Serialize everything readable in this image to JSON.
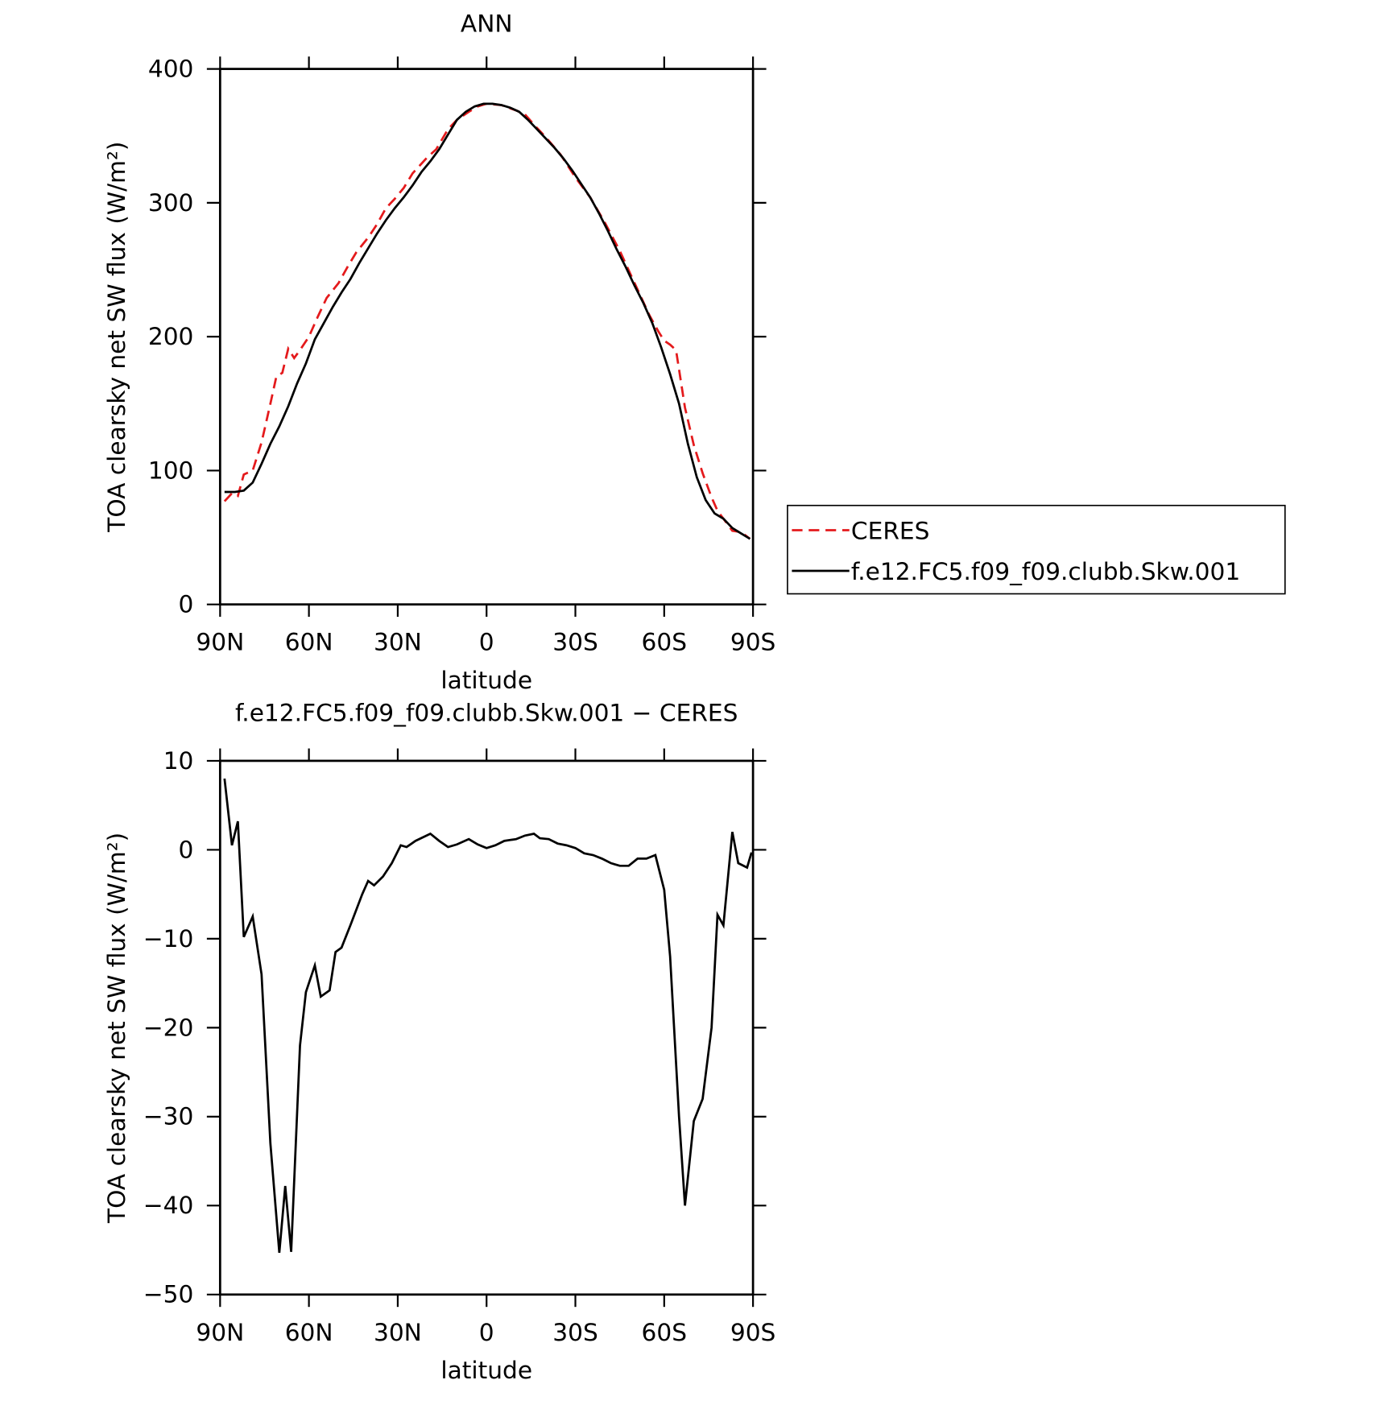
{
  "chart_data": [
    {
      "type": "line",
      "title": "ANN",
      "x_label": "latitude",
      "y_label": "TOA clearsky net SW flux (W/m²)",
      "xlim": [
        90,
        -90
      ],
      "xticks": [
        {
          "value": 90,
          "label": "90N"
        },
        {
          "value": 60,
          "label": "60N"
        },
        {
          "value": 30,
          "label": "30N"
        },
        0,
        {
          "value": -30,
          "label": "30S"
        },
        {
          "value": -60,
          "label": "60S"
        },
        {
          "value": -90,
          "label": "90S"
        }
      ],
      "ylim": [
        0,
        400
      ],
      "yticks": [
        0,
        100,
        200,
        300,
        400
      ],
      "legend": "right",
      "series": [
        {
          "name": "CERES",
          "color": "#e41a1c",
          "dashed": true,
          "x": [
            88.5,
            86,
            84,
            82,
            79,
            76,
            73,
            71,
            69,
            67,
            65,
            63,
            60,
            57,
            54,
            50,
            47,
            44,
            40,
            37,
            34,
            31,
            28,
            25,
            20,
            17,
            13,
            10,
            6,
            3,
            0,
            -5,
            -10,
            -13,
            -17,
            -20,
            -25,
            -30,
            -35,
            -40,
            -45,
            -50,
            -55,
            -58,
            -60,
            -62,
            -64,
            -67,
            -70,
            -73,
            -76,
            -78,
            -80,
            -83,
            -86,
            -89
          ],
          "values": [
            77,
            83,
            81,
            97,
            100,
            121,
            150,
            170,
            173,
            191,
            184,
            190,
            200,
            215,
            229,
            240,
            252,
            263,
            274,
            284,
            296,
            303,
            311,
            322,
            334,
            340,
            355,
            362,
            368,
            372,
            374,
            373,
            369,
            366,
            356,
            349,
            336,
            319,
            304,
            285,
            264,
            240,
            216,
            204,
            197,
            194,
            190,
            147,
            119,
            98,
            80,
            70,
            64,
            55,
            54,
            49
          ]
        },
        {
          "name": "f.e12.FC5.f09_f09.clubb.Skw.001",
          "color": "#000000",
          "dashed": false,
          "x": [
            88.5,
            85,
            82,
            79,
            76,
            73,
            70,
            67,
            64,
            61,
            58,
            55,
            52,
            49,
            46,
            43,
            40,
            37,
            34,
            31,
            28,
            25,
            22,
            19,
            16,
            13,
            10,
            7,
            4,
            1,
            -2,
            -5,
            -8,
            -11,
            -14,
            -17,
            -20,
            -23,
            -26,
            -29,
            -32,
            -35,
            -38,
            -41,
            -44,
            -47,
            -50,
            -53,
            -56,
            -59,
            -62,
            -65,
            -68,
            -71,
            -74,
            -77,
            -80,
            -83,
            -86,
            -89
          ],
          "values": [
            84,
            84,
            85,
            91,
            105,
            120,
            133,
            148,
            165,
            180,
            198,
            210,
            222,
            233,
            243,
            255,
            266,
            277,
            287,
            296,
            304,
            313,
            323,
            331,
            340,
            351,
            362,
            368,
            372,
            374,
            374,
            373,
            371,
            368,
            362,
            355,
            348,
            341,
            333,
            324,
            314,
            304,
            292,
            279,
            265,
            252,
            238,
            225,
            210,
            192,
            172,
            150,
            120,
            95,
            78,
            68,
            64,
            57,
            53,
            49
          ]
        }
      ]
    },
    {
      "type": "line",
      "title": "f.e12.FC5.f09_f09.clubb.Skw.001 − CERES",
      "x_label": "latitude",
      "y_label": "TOA clearsky net SW flux (W/m²)",
      "xlim": [
        90,
        -90
      ],
      "xticks": [
        {
          "value": 90,
          "label": "90N"
        },
        {
          "value": 60,
          "label": "60N"
        },
        {
          "value": 30,
          "label": "30N"
        },
        0,
        {
          "value": -30,
          "label": "30S"
        },
        {
          "value": -60,
          "label": "60S"
        },
        {
          "value": -90,
          "label": "90S"
        }
      ],
      "ylim": [
        -50,
        10
      ],
      "yticks": [
        {
          "value": -50,
          "label": "−50"
        },
        {
          "value": -40,
          "label": "−40"
        },
        {
          "value": -30,
          "label": "−30"
        },
        {
          "value": -20,
          "label": "−20"
        },
        {
          "value": -10,
          "label": "−10"
        },
        0,
        10
      ],
      "series": [
        {
          "color": "#000000",
          "dashed": false,
          "x": [
            88.5,
            86,
            84,
            82,
            79,
            76,
            73,
            70,
            68,
            66,
            63,
            61,
            58,
            56,
            53,
            51,
            49,
            46,
            42,
            40,
            38,
            35,
            32,
            29,
            27,
            24,
            19,
            16,
            13,
            10,
            6,
            3,
            0,
            -3,
            -6,
            -10,
            -13,
            -16,
            -18,
            -21,
            -24,
            -27,
            -30,
            -33,
            -36,
            -39,
            -42,
            -45,
            -48,
            -51,
            -54,
            -57,
            -60,
            -62,
            -65,
            -67,
            -70,
            -73,
            -76,
            -78,
            -80,
            -83,
            -85,
            -88,
            -89.5
          ],
          "values": [
            8,
            0.5,
            3.2,
            -9.8,
            -7.5,
            -14,
            -33,
            -45.3,
            -37.8,
            -45.2,
            -22,
            -16,
            -13,
            -16.5,
            -15.8,
            -11.5,
            -11,
            -8.5,
            -5,
            -3.5,
            -4,
            -3,
            -1.5,
            0.5,
            0.3,
            1,
            1.8,
            1,
            0.3,
            0.6,
            1.2,
            0.6,
            0.2,
            0.5,
            1,
            1.2,
            1.6,
            1.8,
            1.3,
            1.2,
            0.7,
            0.5,
            0.2,
            -0.4,
            -0.6,
            -1,
            -1.5,
            -1.8,
            -1.8,
            -1,
            -1,
            -0.6,
            -4.5,
            -12,
            -30,
            -40,
            -30.5,
            -28,
            -20,
            -7.3,
            -8.5,
            2,
            -1.5,
            -2,
            -0.3
          ]
        }
      ]
    }
  ]
}
